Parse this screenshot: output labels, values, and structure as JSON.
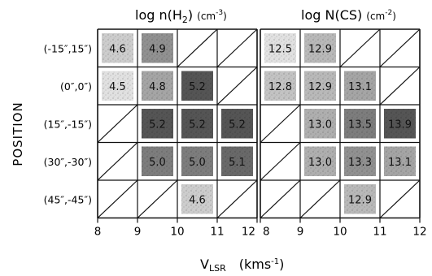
{
  "chart_data": {
    "type": "heatmap",
    "ylabel": "POSITION",
    "xlabel_main": "V",
    "xlabel_sub": "LSR",
    "xlabel_unit_pre": "(kms",
    "xlabel_unit_exp": "-1",
    "xlabel_unit_post": ")",
    "positions": [
      "(-15″,15″)",
      "(0″,0″)",
      "(15″,-15″)",
      "(30″,-30″)",
      "(45″,-45″)"
    ],
    "panels": [
      {
        "title_pre": "log n(H",
        "title_sub": "2",
        "title_post": ")",
        "title_unit_pre": "(cm",
        "title_unit_exp": "-3",
        "title_unit_post": ")",
        "x_ticks": [
          "8",
          "9",
          "10",
          "11",
          "12"
        ],
        "values": [
          [
            4.6,
            4.9,
            null,
            null
          ],
          [
            4.5,
            4.8,
            5.2,
            null
          ],
          [
            null,
            5.2,
            5.2,
            5.2
          ],
          [
            null,
            5.0,
            5.0,
            5.1
          ],
          [
            null,
            null,
            4.6,
            null
          ]
        ],
        "labels": [
          [
            "4.6",
            "4.9",
            null,
            null
          ],
          [
            "4.5",
            "4.8",
            "5.2",
            null
          ],
          [
            null,
            "5.2",
            "5.2",
            "5.2"
          ],
          [
            null,
            "5.0",
            "5.0",
            "5.1"
          ],
          [
            null,
            null,
            "4.6",
            null
          ]
        ]
      },
      {
        "title_pre": "log N(CS)",
        "title_sub": "",
        "title_post": "",
        "title_unit_pre": "(cm",
        "title_unit_exp": "-2",
        "title_unit_post": ")",
        "x_ticks": [
          "8",
          "9",
          "10",
          "11",
          "12"
        ],
        "values": [
          [
            12.5,
            12.9,
            null,
            null
          ],
          [
            12.8,
            12.9,
            13.1,
            null
          ],
          [
            null,
            13.0,
            13.5,
            13.9
          ],
          [
            null,
            13.0,
            13.3,
            13.1
          ],
          [
            null,
            null,
            12.9,
            null
          ]
        ],
        "labels": [
          [
            "12.5",
            "12.9",
            null,
            null
          ],
          [
            "12.8",
            "12.9",
            "13.1",
            null
          ],
          [
            null,
            "13.0",
            "13.5",
            "13.9"
          ],
          [
            null,
            "13.0",
            "13.3",
            "13.1"
          ],
          [
            null,
            null,
            "12.9",
            null
          ]
        ]
      }
    ]
  }
}
